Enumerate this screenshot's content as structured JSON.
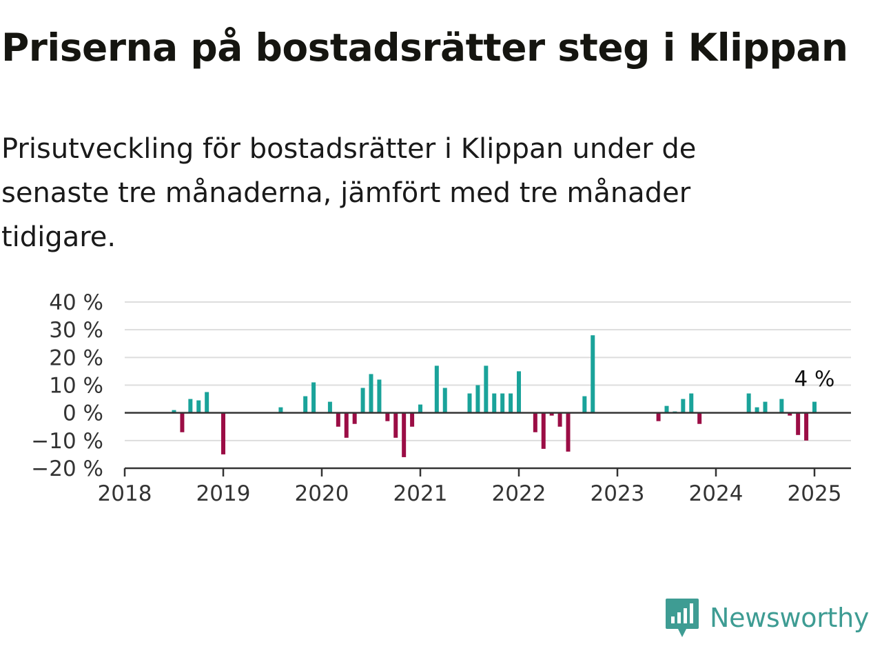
{
  "title": "Priserna på bostadsrätter steg i Klippan",
  "subtitle": "Prisutveckling för bostadsrätter i Klippan under de senaste tre månaderna, jämfört med tre månader tidigare.",
  "brand": {
    "name": "Newsworthy",
    "color": "#3e9c93"
  },
  "colors": {
    "positive": "#1aa39a",
    "negative": "#9b0d45",
    "grid": "#dddddd",
    "axis": "#333333"
  },
  "chart_data": {
    "type": "bar",
    "title": "",
    "xlabel": "",
    "ylabel": "",
    "ylim": [
      -20,
      40
    ],
    "y_ticks": [
      {
        "value": 40,
        "label": "40 %"
      },
      {
        "value": 30,
        "label": "30 %"
      },
      {
        "value": 20,
        "label": "20 %"
      },
      {
        "value": 10,
        "label": "10 %"
      },
      {
        "value": 0,
        "label": "0 %"
      },
      {
        "value": -10,
        "label": "−10 %"
      },
      {
        "value": -20,
        "label": "−20 %"
      }
    ],
    "x_ticks": [
      "2018",
      "2019",
      "2020",
      "2021",
      "2022",
      "2023",
      "2024",
      "2025"
    ],
    "grid": true,
    "legend": "none",
    "annotation": {
      "date": "2025-01",
      "label": "4 %"
    },
    "series": [
      {
        "values": [
          {
            "date": "2018-07",
            "value": 1
          },
          {
            "date": "2018-08",
            "value": -7
          },
          {
            "date": "2018-09",
            "value": 5
          },
          {
            "date": "2018-10",
            "value": 4.5
          },
          {
            "date": "2018-11",
            "value": 7.5
          },
          {
            "date": "2019-01",
            "value": -15
          },
          {
            "date": "2019-08",
            "value": 2
          },
          {
            "date": "2019-11",
            "value": 6
          },
          {
            "date": "2019-12",
            "value": 11
          },
          {
            "date": "2020-02",
            "value": 4
          },
          {
            "date": "2020-03",
            "value": -5
          },
          {
            "date": "2020-04",
            "value": -9
          },
          {
            "date": "2020-05",
            "value": -4
          },
          {
            "date": "2020-06",
            "value": 9
          },
          {
            "date": "2020-07",
            "value": 14
          },
          {
            "date": "2020-08",
            "value": 12
          },
          {
            "date": "2020-09",
            "value": -3
          },
          {
            "date": "2020-10",
            "value": -9
          },
          {
            "date": "2020-11",
            "value": -16
          },
          {
            "date": "2020-12",
            "value": -5
          },
          {
            "date": "2021-01",
            "value": 3
          },
          {
            "date": "2021-03",
            "value": 17
          },
          {
            "date": "2021-04",
            "value": 9
          },
          {
            "date": "2021-07",
            "value": 7
          },
          {
            "date": "2021-08",
            "value": 10
          },
          {
            "date": "2021-09",
            "value": 17
          },
          {
            "date": "2021-10",
            "value": 7
          },
          {
            "date": "2021-11",
            "value": 7
          },
          {
            "date": "2021-12",
            "value": 7
          },
          {
            "date": "2022-01",
            "value": 15
          },
          {
            "date": "2022-03",
            "value": -7
          },
          {
            "date": "2022-04",
            "value": -13
          },
          {
            "date": "2022-05",
            "value": -1
          },
          {
            "date": "2022-06",
            "value": -5
          },
          {
            "date": "2022-07",
            "value": -14
          },
          {
            "date": "2022-09",
            "value": 6
          },
          {
            "date": "2022-10",
            "value": 28
          },
          {
            "date": "2023-06",
            "value": -3
          },
          {
            "date": "2023-07",
            "value": 2.5
          },
          {
            "date": "2023-08",
            "value": 0.5
          },
          {
            "date": "2023-09",
            "value": 5
          },
          {
            "date": "2023-10",
            "value": 7
          },
          {
            "date": "2023-11",
            "value": -4
          },
          {
            "date": "2024-05",
            "value": 7
          },
          {
            "date": "2024-06",
            "value": 2
          },
          {
            "date": "2024-07",
            "value": 4
          },
          {
            "date": "2024-09",
            "value": 5
          },
          {
            "date": "2024-10",
            "value": -1
          },
          {
            "date": "2024-11",
            "value": -8
          },
          {
            "date": "2024-12",
            "value": -10
          },
          {
            "date": "2025-01",
            "value": 4
          }
        ]
      }
    ]
  }
}
